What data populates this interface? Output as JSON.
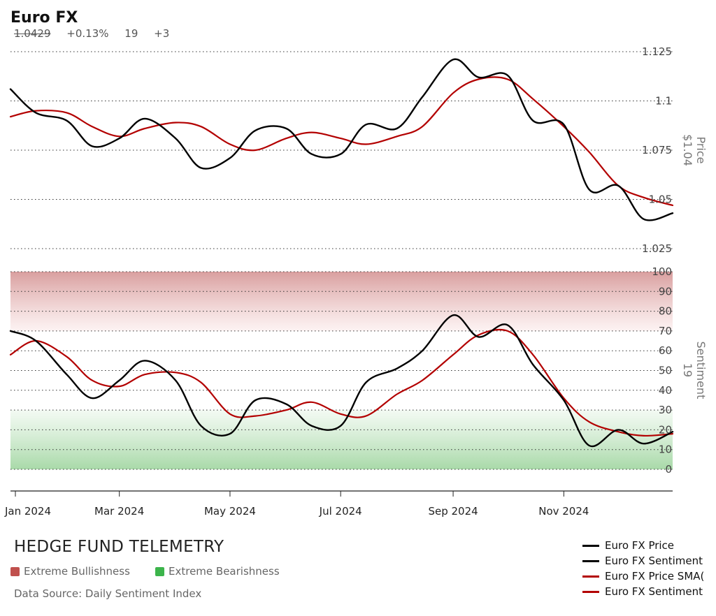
{
  "header": {
    "title": "Euro FX",
    "last_price": "1.0429",
    "change": "+0.13%",
    "sentiment": "19",
    "sentiment_change": "+3"
  },
  "footer": {
    "brand": "HEDGE FUND TELEMETRY",
    "key_bull_label": "Extreme Bullishness",
    "key_bear_label": "Extreme Bearishness",
    "key_bull_color": "#c0504d",
    "key_bear_color": "#3cb44b",
    "source": "Data Source: Daily Sentiment Index"
  },
  "legend": [
    {
      "label": "Euro FX Price",
      "color": "#000000"
    },
    {
      "label": "Euro FX Sentiment",
      "color": "#000000"
    },
    {
      "label": "Euro FX Price SMA(",
      "color": "#b30000"
    },
    {
      "label": "Euro FX Sentiment",
      "color": "#b30000"
    }
  ],
  "chart_data": [
    {
      "type": "line",
      "panel": "price",
      "axis_title": "Price",
      "axis_value": "$1.04",
      "ylim": [
        1.025,
        1.125
      ],
      "yticks": [
        "1.125",
        "1.1",
        "1.075",
        "1.05",
        "1.025"
      ],
      "grid": "dotted horizontal",
      "x": [
        "2024-01-01",
        "2024-01-15",
        "2024-02-01",
        "2024-02-15",
        "2024-03-01",
        "2024-03-15",
        "2024-04-01",
        "2024-04-15",
        "2024-05-01",
        "2024-05-15",
        "2024-06-01",
        "2024-06-15",
        "2024-07-01",
        "2024-07-15",
        "2024-08-01",
        "2024-08-15",
        "2024-09-01",
        "2024-09-15",
        "2024-10-01",
        "2024-10-15",
        "2024-11-01",
        "2024-11-15",
        "2024-12-01",
        "2024-12-15",
        "2024-12-31"
      ],
      "series": [
        {
          "name": "Euro FX Price",
          "color": "#000000",
          "values": [
            1.106,
            1.094,
            1.09,
            1.077,
            1.081,
            1.091,
            1.081,
            1.066,
            1.071,
            1.085,
            1.086,
            1.073,
            1.073,
            1.088,
            1.086,
            1.102,
            1.121,
            1.112,
            1.113,
            1.09,
            1.088,
            1.055,
            1.057,
            1.04,
            1.043
          ]
        },
        {
          "name": "Euro FX Price SMA",
          "color": "#b30000",
          "values": [
            1.092,
            1.095,
            1.094,
            1.087,
            1.082,
            1.086,
            1.089,
            1.087,
            1.078,
            1.075,
            1.081,
            1.084,
            1.081,
            1.078,
            1.082,
            1.087,
            1.104,
            1.111,
            1.111,
            1.101,
            1.087,
            1.074,
            1.057,
            1.051,
            1.047
          ]
        }
      ]
    },
    {
      "type": "line",
      "panel": "sentiment",
      "axis_title": "Sentiment",
      "axis_value": "19",
      "ylim": [
        0,
        100
      ],
      "yticks": [
        "100",
        "90",
        "80",
        "70",
        "60",
        "50",
        "40",
        "30",
        "20",
        "10",
        "0"
      ],
      "bands": [
        {
          "label": "Extreme Bullishness",
          "from": 70,
          "to": 100,
          "color": "#c0504d"
        },
        {
          "label": "Extreme Bearishness",
          "from": 0,
          "to": 30,
          "color": "#3cb44b"
        }
      ],
      "x": [
        "2024-01-01",
        "2024-01-15",
        "2024-02-01",
        "2024-02-15",
        "2024-03-01",
        "2024-03-15",
        "2024-04-01",
        "2024-04-15",
        "2024-05-01",
        "2024-05-15",
        "2024-06-01",
        "2024-06-15",
        "2024-07-01",
        "2024-07-15",
        "2024-08-01",
        "2024-08-15",
        "2024-09-01",
        "2024-09-15",
        "2024-10-01",
        "2024-10-15",
        "2024-11-01",
        "2024-11-15",
        "2024-12-01",
        "2024-12-15",
        "2024-12-31"
      ],
      "series": [
        {
          "name": "Euro FX Sentiment",
          "color": "#000000",
          "values": [
            70,
            65,
            48,
            36,
            45,
            55,
            45,
            22,
            18,
            35,
            33,
            22,
            22,
            44,
            51,
            60,
            78,
            67,
            73,
            53,
            35,
            12,
            20,
            13,
            19
          ]
        },
        {
          "name": "Euro FX Sentiment SMA",
          "color": "#b30000",
          "values": [
            58,
            65,
            57,
            45,
            42,
            48,
            49,
            44,
            28,
            27,
            30,
            34,
            28,
            27,
            38,
            45,
            58,
            68,
            70,
            58,
            36,
            24,
            19,
            17,
            18
          ]
        }
      ]
    }
  ],
  "x_axis": {
    "ticks": [
      "Jan 2024",
      "Mar 2024",
      "May 2024",
      "Jul 2024",
      "Sep 2024",
      "Nov 2024"
    ]
  }
}
